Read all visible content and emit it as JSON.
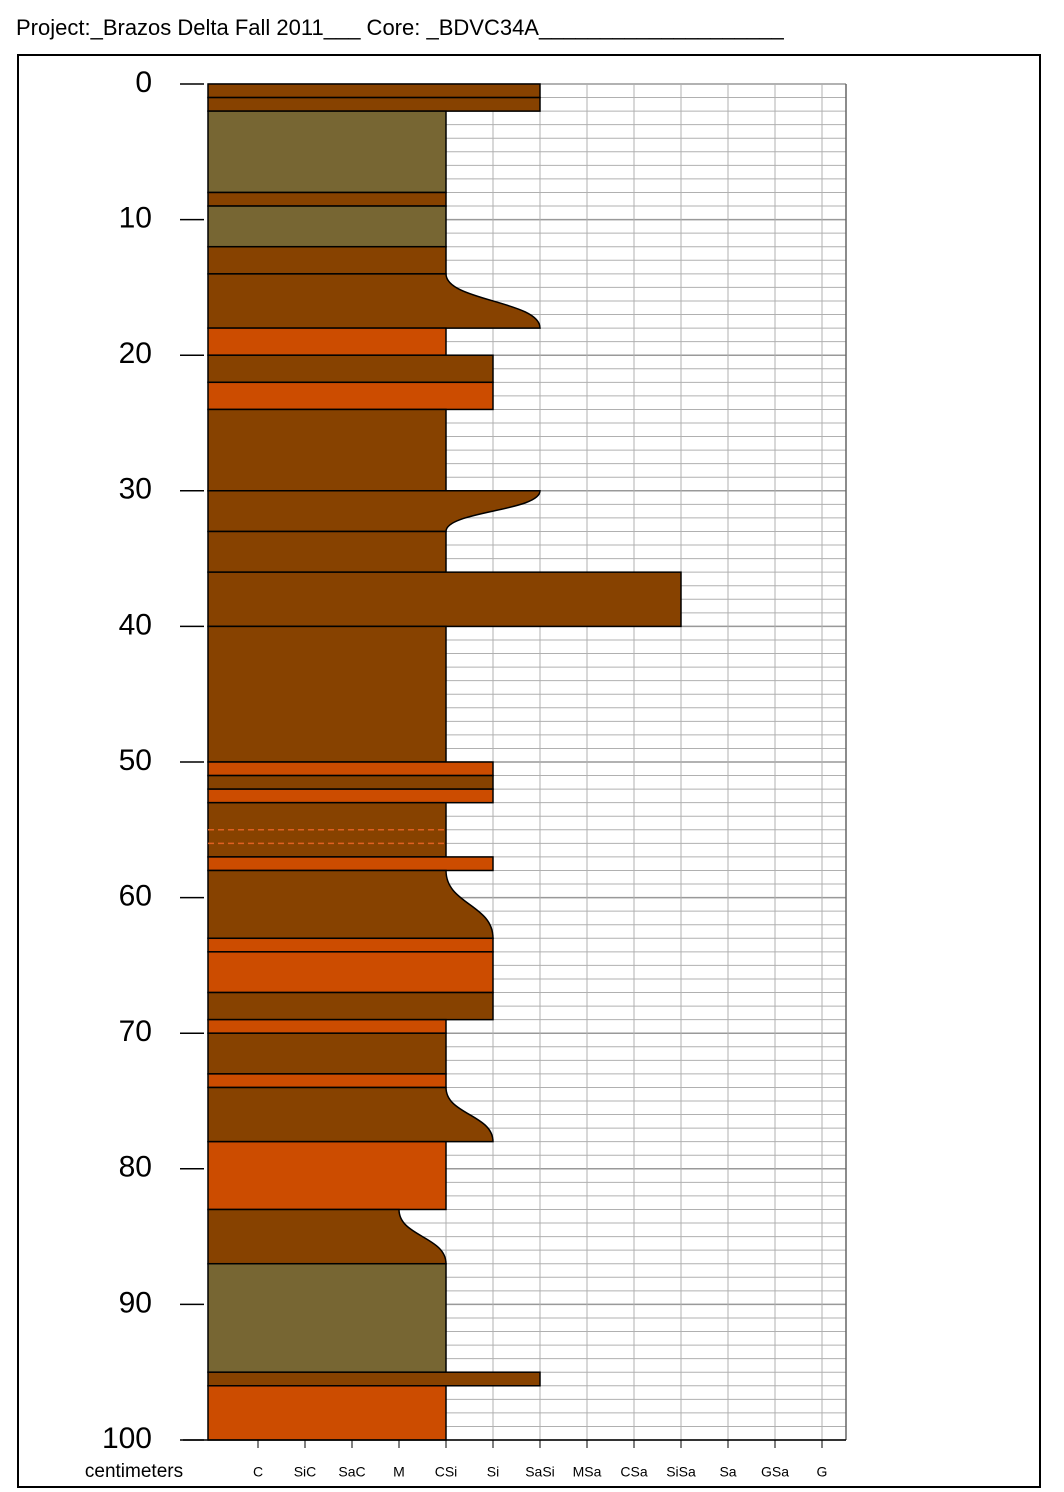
{
  "chart_data": {
    "type": "core-log",
    "title": "Project:_Brazos Delta Fall 2011___   Core: _BDVC34A____________________",
    "ylabel": "centimeters",
    "ylim": [
      0,
      100
    ],
    "yticks": [
      0,
      10,
      20,
      30,
      40,
      50,
      60,
      70,
      80,
      90,
      100
    ],
    "ygrid": [
      1,
      2,
      3,
      4,
      5,
      6,
      7,
      8,
      9,
      10,
      11,
      12,
      13,
      14,
      15,
      16,
      17,
      18,
      19,
      20,
      21,
      22,
      23,
      24,
      25,
      26,
      27,
      28,
      29,
      30,
      31,
      32,
      33,
      34,
      35,
      36,
      37,
      38,
      39,
      40,
      41,
      42,
      43,
      44,
      45,
      46,
      47,
      48,
      49,
      50,
      51,
      52,
      53,
      54,
      55,
      56,
      57,
      58,
      59,
      60,
      61,
      62,
      63,
      64,
      65,
      66,
      67,
      68,
      69,
      70,
      71,
      72,
      73,
      74,
      75,
      76,
      77,
      78,
      79,
      80,
      81,
      82,
      83,
      84,
      85,
      86,
      87,
      88,
      89,
      90,
      91,
      92,
      93,
      94,
      95,
      96,
      97,
      98,
      99
    ],
    "categories": [
      "C",
      "SiC",
      "SaC",
      "M",
      "CSi",
      "Si",
      "SaSi",
      "MSa",
      "CSa",
      "SiSa",
      "Sa",
      "GSa",
      "G"
    ],
    "layers": [
      {
        "top": 0,
        "bottom": 1,
        "grain": "SaSi",
        "color": "#874200"
      },
      {
        "top": 1,
        "bottom": 2,
        "grain": "SaSi",
        "color": "#874200"
      },
      {
        "top": 2,
        "bottom": 8,
        "grain": "CSi",
        "color": "#776633"
      },
      {
        "top": 8,
        "bottom": 9,
        "grain": "CSi",
        "color": "#874200"
      },
      {
        "top": 9,
        "bottom": 12,
        "grain": "CSi",
        "color": "#776633"
      },
      {
        "top": 12,
        "bottom": 14,
        "grain": "CSi",
        "color": "#874200"
      },
      {
        "top": 14,
        "bottom": 18,
        "grain": "CSi",
        "grain_bottom": "SaSi",
        "color": "#874200"
      },
      {
        "top": 18,
        "bottom": 20,
        "grain": "CSi",
        "color": "#cc4c00"
      },
      {
        "top": 20,
        "bottom": 22,
        "grain": "Si",
        "color": "#874200"
      },
      {
        "top": 22,
        "bottom": 24,
        "grain": "Si",
        "color": "#cc4c00"
      },
      {
        "top": 24,
        "bottom": 30,
        "grain": "CSi",
        "color": "#874200"
      },
      {
        "top": 30,
        "bottom": 33,
        "grain": "SaSi",
        "grain_bottom": "CSi",
        "color": "#874200"
      },
      {
        "top": 33,
        "bottom": 36,
        "grain": "CSi",
        "color": "#874200"
      },
      {
        "top": 36,
        "bottom": 40,
        "grain": "SiSa",
        "color": "#874200"
      },
      {
        "top": 40,
        "bottom": 50,
        "grain": "CSi",
        "color": "#874200"
      },
      {
        "top": 50,
        "bottom": 51,
        "grain": "Si",
        "color": "#cc4c00"
      },
      {
        "top": 51,
        "bottom": 52,
        "grain": "Si",
        "color": "#874200"
      },
      {
        "top": 52,
        "bottom": 53,
        "grain": "Si",
        "color": "#cc4c00"
      },
      {
        "top": 53,
        "bottom": 57,
        "grain": "CSi",
        "color": "#874200",
        "dashed": [
          55,
          56
        ]
      },
      {
        "top": 57,
        "bottom": 58,
        "grain": "Si",
        "color": "#cc4c00"
      },
      {
        "top": 58,
        "bottom": 63,
        "grain": "CSi",
        "grain_bottom": "Si",
        "color": "#874200"
      },
      {
        "top": 63,
        "bottom": 64,
        "grain": "Si",
        "color": "#cc4c00"
      },
      {
        "top": 64,
        "bottom": 67,
        "grain": "Si",
        "color": "#cc4c00"
      },
      {
        "top": 67,
        "bottom": 69,
        "grain": "Si",
        "color": "#874200"
      },
      {
        "top": 69,
        "bottom": 70,
        "grain": "CSi",
        "color": "#cc4c00"
      },
      {
        "top": 70,
        "bottom": 73,
        "grain": "CSi",
        "color": "#874200"
      },
      {
        "top": 73,
        "bottom": 74,
        "grain": "CSi",
        "color": "#cc4c00"
      },
      {
        "top": 74,
        "bottom": 78,
        "grain": "CSi",
        "grain_bottom": "Si",
        "color": "#874200"
      },
      {
        "top": 78,
        "bottom": 83,
        "grain": "CSi",
        "color": "#cc4c00"
      },
      {
        "top": 83,
        "bottom": 87,
        "grain": "M",
        "grain_bottom": "CSi",
        "color": "#874200"
      },
      {
        "top": 87,
        "bottom": 95,
        "grain": "CSi",
        "color": "#776633"
      },
      {
        "top": 95,
        "bottom": 96,
        "grain": "SaSi",
        "color": "#874200"
      },
      {
        "top": 96,
        "bottom": 100,
        "grain": "CSi",
        "color": "#cc4c00"
      }
    ]
  }
}
